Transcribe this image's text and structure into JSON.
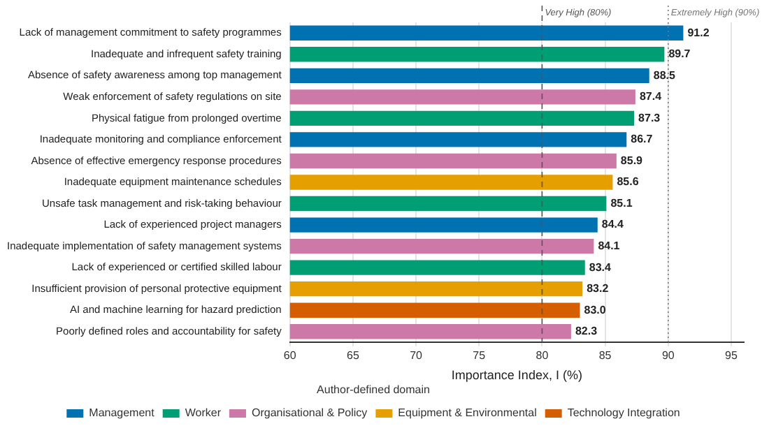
{
  "chart_data": {
    "type": "bar",
    "orientation": "horizontal",
    "xlabel": "Importance Index, I (%)",
    "legend_title": "Author-defined domain",
    "legend": "bottom",
    "grid": "x",
    "categories": [
      "Lack of management commitment to safety programmes",
      "Inadequate and infrequent safety training",
      "Absence of safety awareness among top management",
      "Weak enforcement of safety regulations on site",
      "Physical fatigue from prolonged overtime",
      "Inadequate monitoring and compliance enforcement",
      "Absence of effective emergency response procedures",
      "Inadequate equipment maintenance schedules",
      "Unsafe task management and risk-taking behaviour",
      "Lack of experienced project managers",
      "Inadequate implementation of safety management systems",
      "Lack of experienced or certified skilled labour",
      "Insufficient provision of personal protective equipment",
      "AI and machine learning for hazard prediction",
      "Poorly defined roles and accountability for safety"
    ],
    "series": [
      {
        "name": "Management",
        "color": "#0072b2",
        "values": [
          91.2,
          null,
          88.5,
          null,
          null,
          86.7,
          null,
          null,
          null,
          84.4,
          null,
          null,
          null,
          null,
          null
        ],
        "value_labels": [
          "91.2",
          null,
          "88.5",
          null,
          null,
          "86.7",
          null,
          null,
          null,
          "84.4",
          null,
          null,
          null,
          null,
          null
        ]
      },
      {
        "name": "Worker",
        "color": "#009e73",
        "values": [
          null,
          89.7,
          null,
          null,
          87.3,
          null,
          null,
          null,
          85.1,
          null,
          null,
          83.4,
          null,
          null,
          null
        ],
        "value_labels": [
          null,
          "89.7",
          null,
          null,
          "87.3",
          null,
          null,
          null,
          "85.1",
          null,
          null,
          "83.4",
          null,
          null,
          null
        ]
      },
      {
        "name": "Organisational & Policy",
        "color": "#cc79a7",
        "values": [
          null,
          null,
          null,
          87.4,
          null,
          null,
          85.9,
          null,
          null,
          null,
          84.1,
          null,
          null,
          null,
          82.3
        ],
        "value_labels": [
          null,
          null,
          null,
          "87.4",
          null,
          null,
          "85.9",
          null,
          null,
          null,
          "84.1",
          null,
          null,
          null,
          "82.3"
        ]
      },
      {
        "name": "Equipment & Environmental",
        "color": "#e69f00",
        "values": [
          null,
          null,
          null,
          null,
          null,
          null,
          null,
          85.6,
          null,
          null,
          null,
          null,
          83.2,
          null,
          null
        ],
        "value_labels": [
          null,
          null,
          null,
          null,
          null,
          null,
          null,
          "85.6",
          null,
          null,
          null,
          null,
          "83.2",
          null,
          null
        ]
      },
      {
        "name": "Technology Integration",
        "color": "#d55e00",
        "values": [
          null,
          null,
          null,
          null,
          null,
          null,
          null,
          null,
          null,
          null,
          null,
          null,
          null,
          83.0,
          null
        ],
        "value_labels": [
          null,
          null,
          null,
          null,
          null,
          null,
          null,
          null,
          null,
          null,
          null,
          null,
          null,
          "83.0",
          null
        ]
      }
    ],
    "xlim": [
      60,
      96
    ],
    "xticks": [
      60,
      65,
      70,
      75,
      80,
      85,
      90,
      95
    ],
    "ref_lines": [
      {
        "axis": "x",
        "value": 80,
        "label": "Very High (80%)",
        "color": "#555555",
        "line_style": "dashed"
      },
      {
        "axis": "x",
        "value": 90,
        "label": "Extremely High (90%)",
        "color": "#777777",
        "line_style": "dotted"
      }
    ]
  }
}
